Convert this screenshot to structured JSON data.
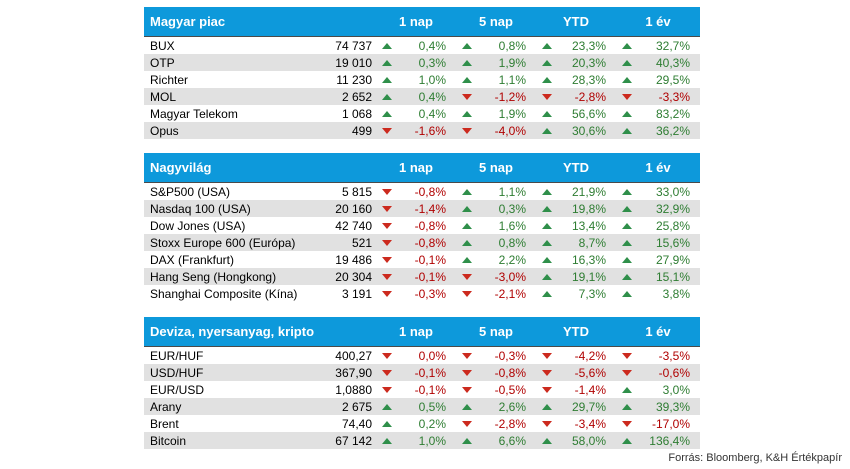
{
  "sections": [
    {
      "title": "Magyar piac",
      "columns": [
        "1 nap",
        "5 nap",
        "YTD",
        "1 év"
      ],
      "rows": [
        {
          "name": "BUX",
          "value": "74 737",
          "changes": [
            {
              "v": "0,4%",
              "d": "up"
            },
            {
              "v": "0,8%",
              "d": "up"
            },
            {
              "v": "23,3%",
              "d": "up"
            },
            {
              "v": "32,7%",
              "d": "up"
            }
          ]
        },
        {
          "name": "OTP",
          "value": "19 010",
          "changes": [
            {
              "v": "0,3%",
              "d": "up"
            },
            {
              "v": "1,9%",
              "d": "up"
            },
            {
              "v": "20,3%",
              "d": "up"
            },
            {
              "v": "40,3%",
              "d": "up"
            }
          ]
        },
        {
          "name": "Richter",
          "value": "11 230",
          "changes": [
            {
              "v": "1,0%",
              "d": "up"
            },
            {
              "v": "1,1%",
              "d": "up"
            },
            {
              "v": "28,3%",
              "d": "up"
            },
            {
              "v": "29,5%",
              "d": "up"
            }
          ]
        },
        {
          "name": "MOL",
          "value": "2 652",
          "changes": [
            {
              "v": "0,4%",
              "d": "up"
            },
            {
              "v": "-1,2%",
              "d": "down"
            },
            {
              "v": "-2,8%",
              "d": "down"
            },
            {
              "v": "-3,3%",
              "d": "down"
            }
          ]
        },
        {
          "name": "Magyar Telekom",
          "value": "1 068",
          "changes": [
            {
              "v": "0,4%",
              "d": "up"
            },
            {
              "v": "1,9%",
              "d": "up"
            },
            {
              "v": "56,6%",
              "d": "up"
            },
            {
              "v": "83,2%",
              "d": "up"
            }
          ]
        },
        {
          "name": "Opus",
          "value": "499",
          "changes": [
            {
              "v": "-1,6%",
              "d": "down"
            },
            {
              "v": "-4,0%",
              "d": "down"
            },
            {
              "v": "30,6%",
              "d": "up"
            },
            {
              "v": "36,2%",
              "d": "up"
            }
          ]
        }
      ]
    },
    {
      "title": "Nagyvilág",
      "columns": [
        "1 nap",
        "5 nap",
        "YTD",
        "1 év"
      ],
      "rows": [
        {
          "name": "S&P500 (USA)",
          "value": "5 815",
          "changes": [
            {
              "v": "-0,8%",
              "d": "down"
            },
            {
              "v": "1,1%",
              "d": "up"
            },
            {
              "v": "21,9%",
              "d": "up"
            },
            {
              "v": "33,0%",
              "d": "up"
            }
          ]
        },
        {
          "name": "Nasdaq 100 (USA)",
          "value": "20 160",
          "changes": [
            {
              "v": "-1,4%",
              "d": "down"
            },
            {
              "v": "0,3%",
              "d": "up"
            },
            {
              "v": "19,8%",
              "d": "up"
            },
            {
              "v": "32,9%",
              "d": "up"
            }
          ]
        },
        {
          "name": "Dow Jones (USA)",
          "value": "42 740",
          "changes": [
            {
              "v": "-0,8%",
              "d": "down"
            },
            {
              "v": "1,6%",
              "d": "up"
            },
            {
              "v": "13,4%",
              "d": "up"
            },
            {
              "v": "25,8%",
              "d": "up"
            }
          ]
        },
        {
          "name": "Stoxx Europe 600 (Európa)",
          "value": "521",
          "changes": [
            {
              "v": "-0,8%",
              "d": "down"
            },
            {
              "v": "0,8%",
              "d": "up"
            },
            {
              "v": "8,7%",
              "d": "up"
            },
            {
              "v": "15,6%",
              "d": "up"
            }
          ]
        },
        {
          "name": "DAX (Frankfurt)",
          "value": "19 486",
          "changes": [
            {
              "v": "-0,1%",
              "d": "down"
            },
            {
              "v": "2,2%",
              "d": "up"
            },
            {
              "v": "16,3%",
              "d": "up"
            },
            {
              "v": "27,9%",
              "d": "up"
            }
          ]
        },
        {
          "name": "Hang Seng (Hongkong)",
          "value": "20 304",
          "changes": [
            {
              "v": "-0,1%",
              "d": "down"
            },
            {
              "v": "-3,0%",
              "d": "down"
            },
            {
              "v": "19,1%",
              "d": "up"
            },
            {
              "v": "15,1%",
              "d": "up"
            }
          ]
        },
        {
          "name": "Shanghai Composite (Kína)",
          "value": "3 191",
          "changes": [
            {
              "v": "-0,3%",
              "d": "down"
            },
            {
              "v": "-2,1%",
              "d": "down"
            },
            {
              "v": "7,3%",
              "d": "up"
            },
            {
              "v": "3,8%",
              "d": "up"
            }
          ]
        }
      ]
    },
    {
      "title": "Deviza, nyersanyag, kripto",
      "columns": [
        "1 nap",
        "5 nap",
        "YTD",
        "1 év"
      ],
      "rows": [
        {
          "name": "EUR/HUF",
          "value": "400,27",
          "changes": [
            {
              "v": "0,0%",
              "d": "down"
            },
            {
              "v": "-0,3%",
              "d": "down"
            },
            {
              "v": "-4,2%",
              "d": "down"
            },
            {
              "v": "-3,5%",
              "d": "down"
            }
          ]
        },
        {
          "name": "USD/HUF",
          "value": "367,90",
          "changes": [
            {
              "v": "-0,1%",
              "d": "down"
            },
            {
              "v": "-0,8%",
              "d": "down"
            },
            {
              "v": "-5,6%",
              "d": "down"
            },
            {
              "v": "-0,6%",
              "d": "down"
            }
          ]
        },
        {
          "name": "EUR/USD",
          "value": "1,0880",
          "changes": [
            {
              "v": "-0,1%",
              "d": "down"
            },
            {
              "v": "-0,5%",
              "d": "down"
            },
            {
              "v": "-1,4%",
              "d": "down"
            },
            {
              "v": "3,0%",
              "d": "up"
            }
          ]
        },
        {
          "name": "Arany",
          "value": "2 675",
          "changes": [
            {
              "v": "0,5%",
              "d": "up"
            },
            {
              "v": "2,6%",
              "d": "up"
            },
            {
              "v": "29,7%",
              "d": "up"
            },
            {
              "v": "39,3%",
              "d": "up"
            }
          ]
        },
        {
          "name": "Brent",
          "value": "74,40",
          "changes": [
            {
              "v": "0,2%",
              "d": "up"
            },
            {
              "v": "-2,8%",
              "d": "down"
            },
            {
              "v": "-3,4%",
              "d": "down"
            },
            {
              "v": "-17,0%",
              "d": "down"
            }
          ]
        },
        {
          "name": "Bitcoin",
          "value": "67 142",
          "changes": [
            {
              "v": "1,0%",
              "d": "up"
            },
            {
              "v": "6,6%",
              "d": "up"
            },
            {
              "v": "58,0%",
              "d": "up"
            },
            {
              "v": "136,4%",
              "d": "up"
            }
          ]
        }
      ]
    }
  ],
  "source": "Forrás: Bloomberg, K&H Értékpapír",
  "colors": {
    "header_bg": "#0d99db",
    "alt_row": "#e1e1e1",
    "up": "#2f8f4a",
    "down": "#cc2a1e"
  }
}
